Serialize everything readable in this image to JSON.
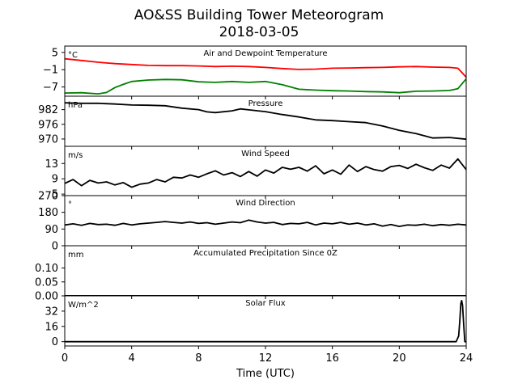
{
  "chart_data": {
    "type": "line",
    "title": "AO&SS Building Tower Meteorogram",
    "subtitle": "2018-03-05",
    "xlabel": "Time (UTC)",
    "x_ticks": [
      "0",
      "4",
      "8",
      "12",
      "16",
      "20",
      "24"
    ],
    "xlim": [
      0,
      24
    ],
    "panels": [
      {
        "id": "temp",
        "title": "Air and Dewpoint Temperature",
        "unit": "°C",
        "ylim": [
          -10.2,
          7.2
        ],
        "yticks": [
          5,
          -1,
          -7
        ],
        "ytick_labels": [
          "5",
          "−1",
          "−7"
        ],
        "series": [
          {
            "color": "#ff0000",
            "x": [
              0,
              1,
              2,
              3,
              4,
              5,
              6,
              7,
              8,
              9,
              10,
              11,
              12,
              13,
              14,
              15,
              16,
              17,
              18,
              19,
              20,
              21,
              22,
              23,
              23.5,
              24
            ],
            "y": [
              2.8,
              2.2,
              1.6,
              1.1,
              0.8,
              0.5,
              0.4,
              0.4,
              0.3,
              0.1,
              0.2,
              0.1,
              -0.2,
              -0.6,
              -0.9,
              -0.8,
              -0.5,
              -0.4,
              -0.3,
              -0.2,
              0.0,
              0.1,
              -0.1,
              -0.2,
              -0.5,
              -3.6
            ]
          },
          {
            "color": "#008000",
            "x": [
              0,
              1,
              2,
              2.5,
              3,
              3.5,
              4,
              5,
              6,
              7,
              8,
              9,
              10,
              11,
              12,
              13,
              14,
              15,
              16,
              17,
              18,
              19,
              20,
              21,
              22,
              23,
              23.5,
              24
            ],
            "y": [
              -9.1,
              -9.0,
              -9.4,
              -8.9,
              -7.2,
              -6.1,
              -5.1,
              -4.6,
              -4.4,
              -4.5,
              -5.2,
              -5.4,
              -5.1,
              -5.4,
              -5.1,
              -6.2,
              -7.8,
              -8.1,
              -8.3,
              -8.4,
              -8.6,
              -8.7,
              -9.0,
              -8.5,
              -8.4,
              -8.2,
              -7.6,
              -4.2
            ]
          }
        ]
      },
      {
        "id": "pressure",
        "title": "Pressure",
        "unit": "hPa",
        "ylim": [
          967.0,
          987.5
        ],
        "yticks": [
          982,
          976,
          970
        ],
        "ytick_labels": [
          "982",
          "976",
          "970"
        ],
        "series": [
          {
            "color": "#000000",
            "x": [
              0,
              1,
              2,
              3,
              4,
              5,
              6,
              7,
              8,
              8.5,
              9,
              10,
              10.5,
              11,
              12,
              13,
              14,
              15,
              16,
              17,
              18,
              19,
              20,
              21,
              22,
              23,
              24
            ],
            "y": [
              984.8,
              984.6,
              984.6,
              984.3,
              983.9,
              983.8,
              983.6,
              982.6,
              982.0,
              981.1,
              980.8,
              981.5,
              982.3,
              981.9,
              981.2,
              980.0,
              979.0,
              977.8,
              977.5,
              977.1,
              976.7,
              975.3,
              973.5,
              972.2,
              970.4,
              970.6,
              969.9
            ]
          }
        ]
      },
      {
        "id": "wind_speed",
        "title": "Wind Speed",
        "unit": "m/s",
        "ylim": [
          4.6,
          17.5
        ],
        "yticks": [
          13,
          9,
          5
        ],
        "ytick_labels": [
          "13",
          "9",
          "5"
        ],
        "series": [
          {
            "color": "#000000",
            "x": [
              0,
              0.5,
              1,
              1.5,
              2,
              2.5,
              3,
              3.5,
              4,
              4.5,
              5,
              5.5,
              6,
              6.5,
              7,
              7.5,
              8,
              8.5,
              9,
              9.5,
              10,
              10.5,
              11,
              11.5,
              12,
              12.5,
              13,
              13.5,
              14,
              14.5,
              15,
              15.5,
              16,
              16.5,
              17,
              17.5,
              18,
              18.5,
              19,
              19.5,
              20,
              20.5,
              21,
              21.5,
              22,
              22.5,
              23,
              23.5,
              24
            ],
            "y": [
              7.8,
              8.8,
              7.2,
              8.6,
              7.9,
              8.2,
              7.4,
              8.0,
              6.8,
              7.6,
              7.9,
              8.8,
              8.2,
              9.4,
              9.2,
              10.0,
              9.4,
              10.3,
              11.1,
              10.0,
              10.6,
              9.6,
              10.9,
              9.7,
              11.3,
              10.5,
              12.0,
              11.5,
              12.0,
              11.0,
              12.4,
              10.3,
              11.3,
              10.2,
              12.6,
              10.9,
              12.2,
              11.4,
              11.0,
              12.2,
              12.5,
              11.7,
              12.8,
              11.9,
              11.2,
              12.6,
              11.8,
              14.2,
              11.4
            ]
          }
        ]
      },
      {
        "id": "wind_dir",
        "title": "Wind Direction",
        "unit": "°",
        "ylim": [
          0,
          270
        ],
        "yticks": [
          270,
          180,
          90,
          0
        ],
        "ytick_labels": [
          "270",
          "180",
          "90",
          "0"
        ],
        "series": [
          {
            "color": "#000000",
            "x": [
              0,
              0.5,
              1,
              1.5,
              2,
              2.5,
              3,
              3.5,
              4,
              4.5,
              5,
              5.5,
              6,
              6.5,
              7,
              7.5,
              8,
              8.5,
              9,
              9.5,
              10,
              10.5,
              11,
              11.5,
              12,
              12.5,
              13,
              13.5,
              14,
              14.5,
              15,
              15.5,
              16,
              16.5,
              17,
              17.5,
              18,
              18.5,
              19,
              19.5,
              20,
              20.5,
              21,
              21.5,
              22,
              22.5,
              23,
              23.5,
              24
            ],
            "y": [
              112,
              118,
              110,
              120,
              114,
              116,
              110,
              120,
              112,
              118,
              122,
              126,
              130,
              126,
              122,
              128,
              120,
              124,
              116,
              122,
              128,
              124,
              138,
              128,
              122,
              126,
              114,
              120,
              118,
              126,
              112,
              122,
              118,
              126,
              116,
              122,
              112,
              118,
              106,
              114,
              104,
              112,
              110,
              116,
              108,
              114,
              110,
              116,
              112
            ]
          }
        ]
      },
      {
        "id": "precip",
        "title": "Accumulated Precipitation Since 0Z",
        "unit": "mm",
        "ylim": [
          0,
          0.18
        ],
        "yticks": [
          0.1,
          0.05,
          0.0
        ],
        "ytick_labels": [
          "0.10",
          "0.05",
          "0.00"
        ],
        "series": [
          {
            "color": "#000000",
            "x": [
              0,
              24
            ],
            "y": [
              0,
              0
            ]
          }
        ]
      },
      {
        "id": "solar",
        "title": "Solar Flux",
        "unit": "W/m^2",
        "ylim": [
          -4.5,
          48
        ],
        "yticks": [
          32,
          16,
          0
        ],
        "ytick_labels": [
          "32",
          "16",
          "0"
        ],
        "series": [
          {
            "color": "#000000",
            "x": [
              0,
              23.4,
              23.55,
              23.62,
              23.68,
              23.73,
              23.78,
              23.85,
              23.92,
              24
            ],
            "y": [
              0,
              0,
              6,
              22,
              40,
              43,
              38,
              18,
              0,
              0
            ]
          }
        ]
      }
    ]
  }
}
